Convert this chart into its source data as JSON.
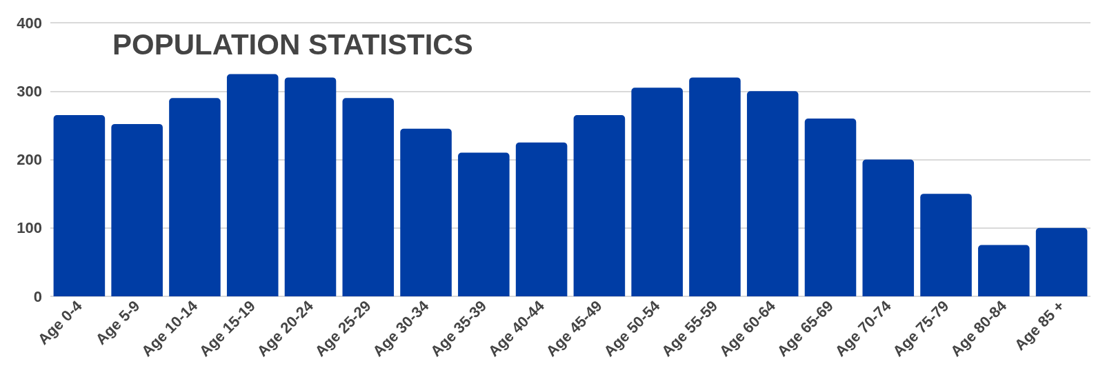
{
  "chart_data": {
    "type": "bar",
    "title": "POPULATION STATISTICS",
    "categories": [
      "Age 0-4",
      "Age 5-9",
      "Age 10-14",
      "Age 15-19",
      "Age 20-24",
      "Age 25-29",
      "Age 30-34",
      "Age 35-39",
      "Age 40-44",
      "Age 45-49",
      "Age 50-54",
      "Age 55-59",
      "Age 60-64",
      "Age 65-69",
      "Age 70-74",
      "Age 75-79",
      "Age 80-84",
      "Age 85 +"
    ],
    "values": [
      265,
      252,
      290,
      325,
      320,
      290,
      245,
      210,
      225,
      265,
      305,
      320,
      300,
      260,
      200,
      150,
      75,
      100
    ],
    "color": "#003da5",
    "ylim": [
      0,
      400
    ],
    "yticks": [
      0,
      100,
      200,
      300,
      400
    ],
    "grid": "y"
  }
}
